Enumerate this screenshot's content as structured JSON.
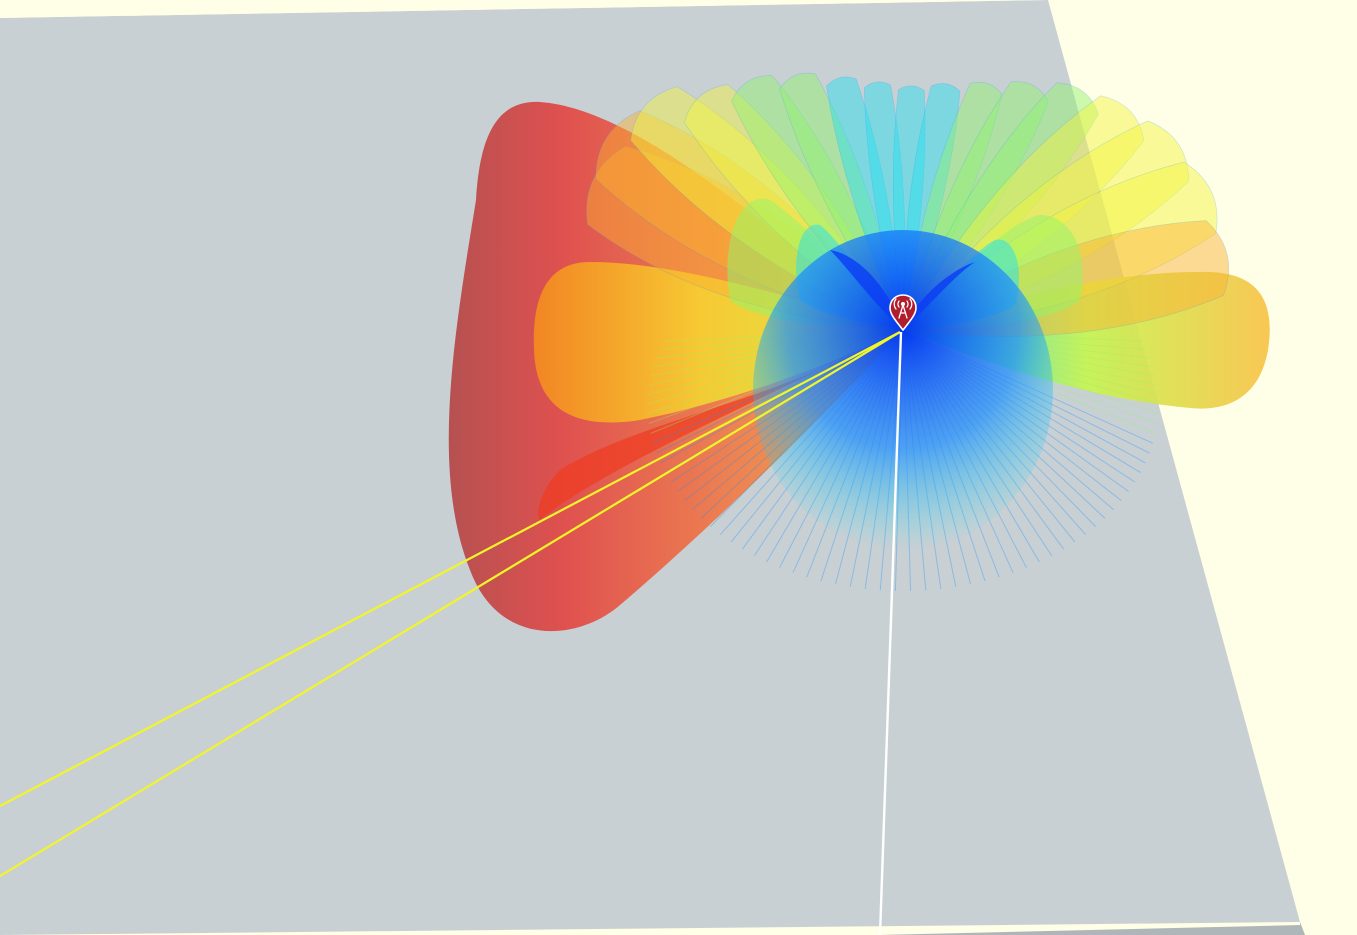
{
  "scene": {
    "background_color": "#fffee6",
    "ground_color": "#c8d0d4",
    "ground_edge_color": "#aeb6ba",
    "ray_color": "#f2f52a",
    "vertical_line_color": "#ffffff",
    "colormap": "jet",
    "radiation_pattern": {
      "type": "antenna-3d-pattern",
      "colors": [
        "#0a3cf5",
        "#1e90ff",
        "#22e0f0",
        "#8ff56a",
        "#f5f53a",
        "#fab030",
        "#f0802a",
        "#e04a48"
      ]
    }
  },
  "marker": {
    "icon": "cell-tower-icon",
    "color": "#b01e2e"
  }
}
